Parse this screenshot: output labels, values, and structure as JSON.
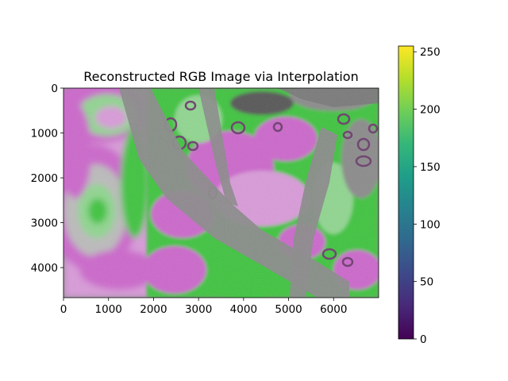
{
  "chart_data": {
    "type": "heatmap",
    "title": "Reconstructed RGB Image via Interpolation",
    "xlabel": "",
    "ylabel": "",
    "x_axis": {
      "ticks": [
        0,
        1000,
        2000,
        3000,
        4000,
        5000,
        6000
      ],
      "range": [
        0,
        7000
      ]
    },
    "y_axis": {
      "ticks": [
        0,
        1000,
        2000,
        3000,
        4000
      ],
      "range": [
        0,
        4670
      ],
      "inverted": true
    },
    "colorbar": {
      "colormap": "viridis",
      "range": [
        0,
        255
      ],
      "ticks": [
        0,
        50,
        100,
        150,
        200,
        250
      ],
      "colors": [
        "#440154",
        "#482878",
        "#3e4989",
        "#31688e",
        "#26828e",
        "#1f9e89",
        "#35b779",
        "#6ece58",
        "#b5de2b",
        "#fde725"
      ]
    },
    "image_palette": {
      "magenta": "#cc66cc",
      "light_magenta": "#d99ad9",
      "green": "#3cc43c",
      "light_green": "#8fd68f",
      "gray": "#8a8a8a",
      "dark_gray": "#555555"
    },
    "grid": false,
    "legend": "none"
  }
}
